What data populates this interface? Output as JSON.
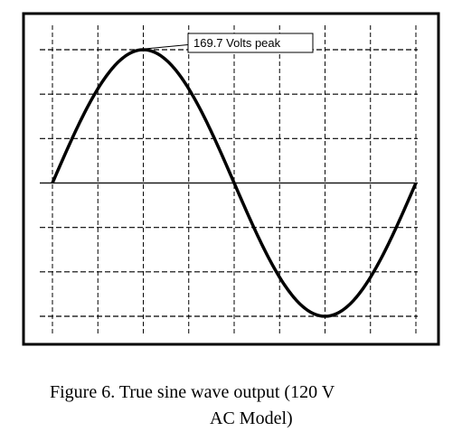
{
  "chart_data": {
    "type": "line",
    "title": "",
    "xlabel": "",
    "ylabel": "",
    "xlim": [
      0,
      360
    ],
    "ylim": [
      -169.7,
      169.7
    ],
    "grid": true,
    "series": [
      {
        "x": [
          0,
          15,
          30,
          45,
          60,
          75,
          90,
          105,
          120,
          135,
          150,
          165,
          180,
          195,
          210,
          225,
          240,
          255,
          270,
          285,
          300,
          315,
          330,
          345,
          360
        ],
        "values": [
          0,
          43.9,
          84.9,
          120.0,
          147.0,
          163.9,
          169.7,
          163.9,
          147.0,
          120.0,
          84.9,
          43.9,
          0,
          -43.9,
          -84.9,
          -120.0,
          -147.0,
          -163.9,
          -169.7,
          -163.9,
          -147.0,
          -120.0,
          -84.9,
          -43.9,
          0
        ]
      }
    ],
    "annotations": [
      {
        "text": "169.7 Volts peak",
        "x": 90,
        "y": 169.7
      }
    ],
    "line_color": "#000000",
    "grid_color": "#000000"
  },
  "caption": {
    "line1": "Figure 6.  True sine wave output (120 V",
    "line2": "AC Model)"
  }
}
